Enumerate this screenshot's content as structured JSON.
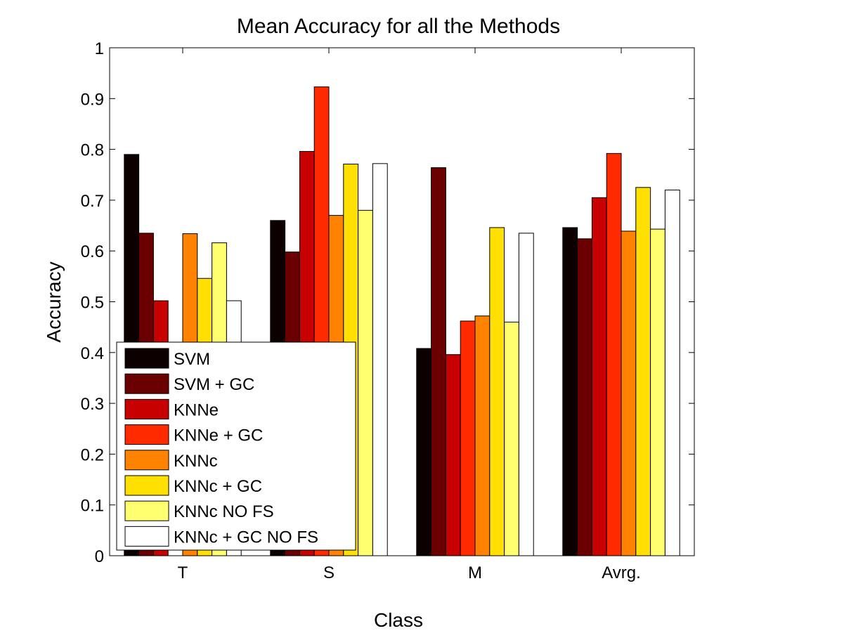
{
  "chart_data": {
    "type": "bar",
    "title": "Mean Accuracy for all the Methods",
    "xlabel": "Class",
    "ylabel": "Accuracy",
    "categories": [
      "T",
      "S",
      "M",
      "Avrg."
    ],
    "ylim": [
      0,
      1
    ],
    "yticks": [
      "0",
      "0.1",
      "0.2",
      "0.3",
      "0.4",
      "0.5",
      "0.6",
      "0.7",
      "0.8",
      "0.9",
      "1"
    ],
    "grid": false,
    "legend_position": "bottom-left",
    "series": [
      {
        "name": "SVM",
        "color": "#0d0000",
        "values": [
          0.79,
          0.66,
          0.408,
          0.646
        ]
      },
      {
        "name": "SVM + GC",
        "color": "#6b0000",
        "values": [
          0.635,
          0.598,
          0.764,
          0.624
        ]
      },
      {
        "name": "KNNe",
        "color": "#c80000",
        "values": [
          0.502,
          0.796,
          0.396,
          0.705
        ]
      },
      {
        "name": "KNNe + GC",
        "color": "#ff2a00",
        "values": [
          0.0,
          0.923,
          0.462,
          0.792
        ]
      },
      {
        "name": "KNNc",
        "color": "#ff8200",
        "values": [
          0.634,
          0.67,
          0.472,
          0.639
        ]
      },
      {
        "name": "KNNc + GC",
        "color": "#ffe000",
        "values": [
          0.546,
          0.771,
          0.646,
          0.725
        ]
      },
      {
        "name": "KNNc NO FS",
        "color": "#ffff70",
        "values": [
          0.616,
          0.68,
          0.46,
          0.643
        ]
      },
      {
        "name": "KNNc + GC NO FS",
        "color": "#ffffff",
        "values": [
          0.502,
          0.772,
          0.635,
          0.72
        ]
      }
    ]
  }
}
